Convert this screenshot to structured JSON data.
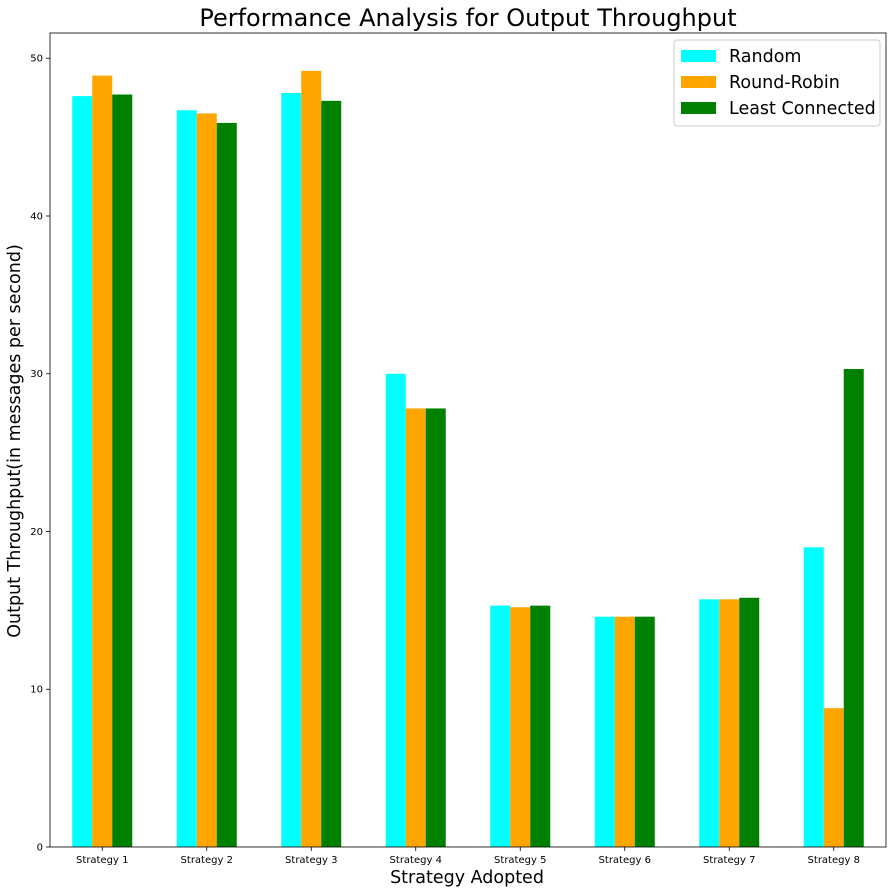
{
  "chart_data": {
    "type": "bar",
    "title": "Performance Analysis for Output Throughput",
    "xlabel": "Strategy Adopted",
    "ylabel": "Output Throughput(in messages per second)",
    "categories": [
      "Strategy 1",
      "Strategy 2",
      "Strategy 3",
      "Strategy 4",
      "Strategy 5",
      "Strategy 6",
      "Strategy 7",
      "Strategy 8"
    ],
    "yticks": [
      "0",
      "10",
      "20",
      "30",
      "40",
      "50"
    ],
    "ylim": [
      0,
      51.6
    ],
    "grid": false,
    "legend_position": "top-right",
    "series": [
      {
        "name": "Random",
        "color": "#00ffff",
        "values": [
          47.6,
          46.7,
          47.8,
          30.0,
          15.3,
          14.6,
          15.7,
          19.0
        ]
      },
      {
        "name": "Round-Robin",
        "color": "#ffa500",
        "values": [
          48.9,
          46.5,
          49.2,
          27.8,
          15.2,
          14.6,
          15.7,
          8.8
        ]
      },
      {
        "name": "Least Connected",
        "color": "#008000",
        "values": [
          47.7,
          45.9,
          47.3,
          27.8,
          15.3,
          14.6,
          15.8,
          30.3
        ]
      }
    ]
  }
}
